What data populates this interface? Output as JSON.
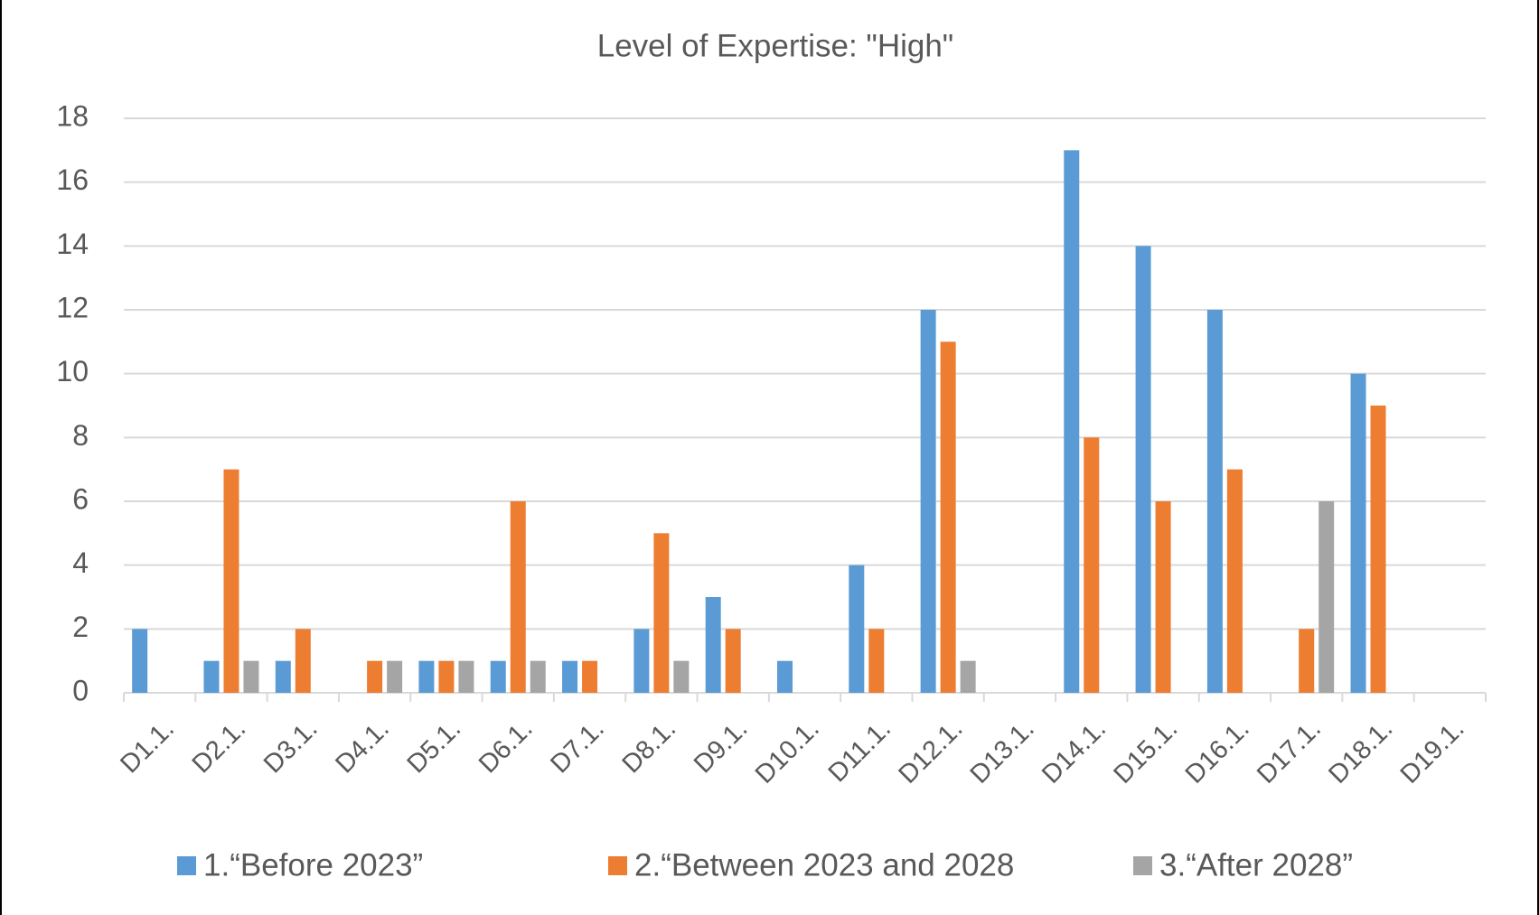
{
  "chart_data": {
    "type": "bar",
    "title": "Level of Expertise: \"High\"",
    "categories": [
      "D1.1.",
      "D2.1.",
      "D3.1.",
      "D4.1.",
      "D5.1.",
      "D6.1.",
      "D7.1.",
      "D8.1.",
      "D9.1.",
      "D10.1.",
      "D11.1.",
      "D12.1.",
      "D13.1.",
      "D14.1.",
      "D15.1.",
      "D16.1.",
      "D17.1.",
      "D18.1.",
      "D19.1."
    ],
    "series": [
      {
        "name": "1.“Before 2023”",
        "color": "#5b9bd5",
        "values": [
          2,
          1,
          1,
          0,
          1,
          1,
          1,
          2,
          3,
          1,
          4,
          12,
          0,
          17,
          14,
          12,
          0,
          10,
          0
        ]
      },
      {
        "name": "2.“Between 2023 and 2028",
        "color": "#ed7d31",
        "values": [
          0,
          7,
          2,
          1,
          1,
          6,
          1,
          5,
          2,
          0,
          2,
          11,
          0,
          8,
          6,
          7,
          2,
          9,
          0
        ]
      },
      {
        "name": "3.“After 2028”",
        "color": "#a5a5a5",
        "values": [
          0,
          1,
          0,
          1,
          1,
          1,
          0,
          1,
          0,
          0,
          0,
          1,
          0,
          0,
          0,
          0,
          6,
          0,
          0
        ]
      }
    ],
    "ylim": [
      0,
      18
    ],
    "yticks": [
      0,
      2,
      4,
      6,
      8,
      10,
      12,
      14,
      16,
      18
    ],
    "grid": true
  }
}
